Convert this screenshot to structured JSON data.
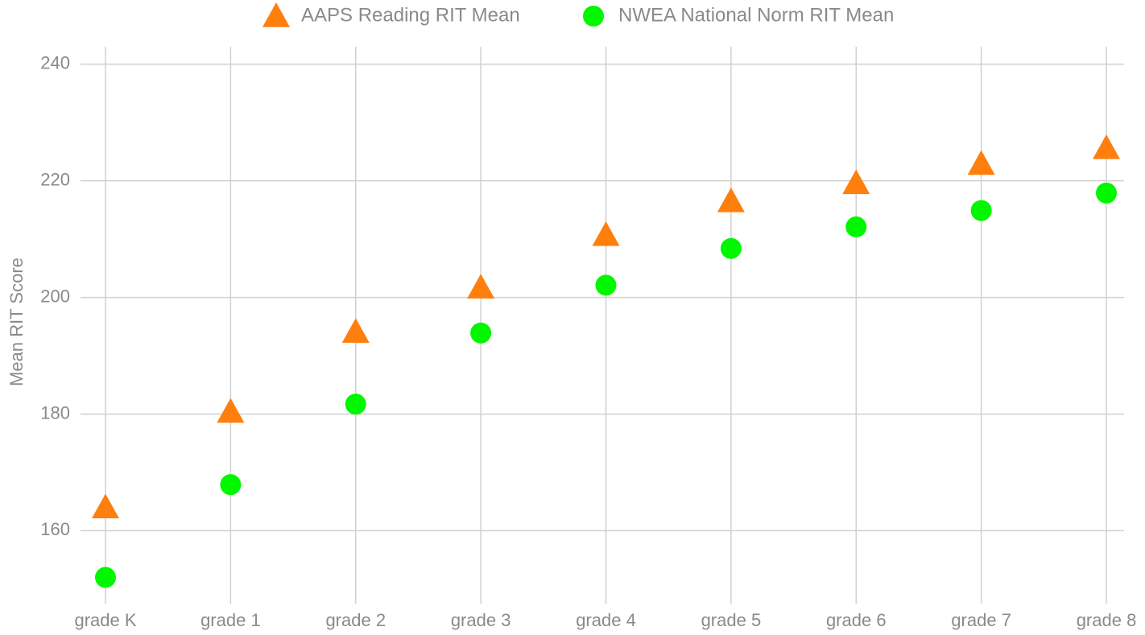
{
  "chart_data": {
    "type": "scatter",
    "y_label": "Mean RIT Score",
    "categories": [
      "grade K",
      "grade 1",
      "grade 2",
      "grade 3",
      "grade 4",
      "grade 5",
      "grade 6",
      "grade 7",
      "grade 8"
    ],
    "series": [
      {
        "name": "AAPS Reading RIT Mean",
        "color": "#ff7f0e",
        "marker": "triangle",
        "values": [
          164.0,
          180.4,
          194.1,
          201.7,
          210.7,
          216.5,
          219.6,
          222.9,
          225.6
        ]
      },
      {
        "name": "NWEA National Norm RIT Mean",
        "color": "#00f700",
        "marker": "circle",
        "values": [
          152.0,
          167.9,
          181.7,
          193.9,
          202.1,
          208.4,
          212.1,
          214.9,
          217.9
        ]
      }
    ],
    "ylim": [
      147.5,
      243
    ],
    "yticks": [
      160,
      180,
      200,
      220,
      240
    ],
    "grid": true,
    "legend": "top"
  }
}
